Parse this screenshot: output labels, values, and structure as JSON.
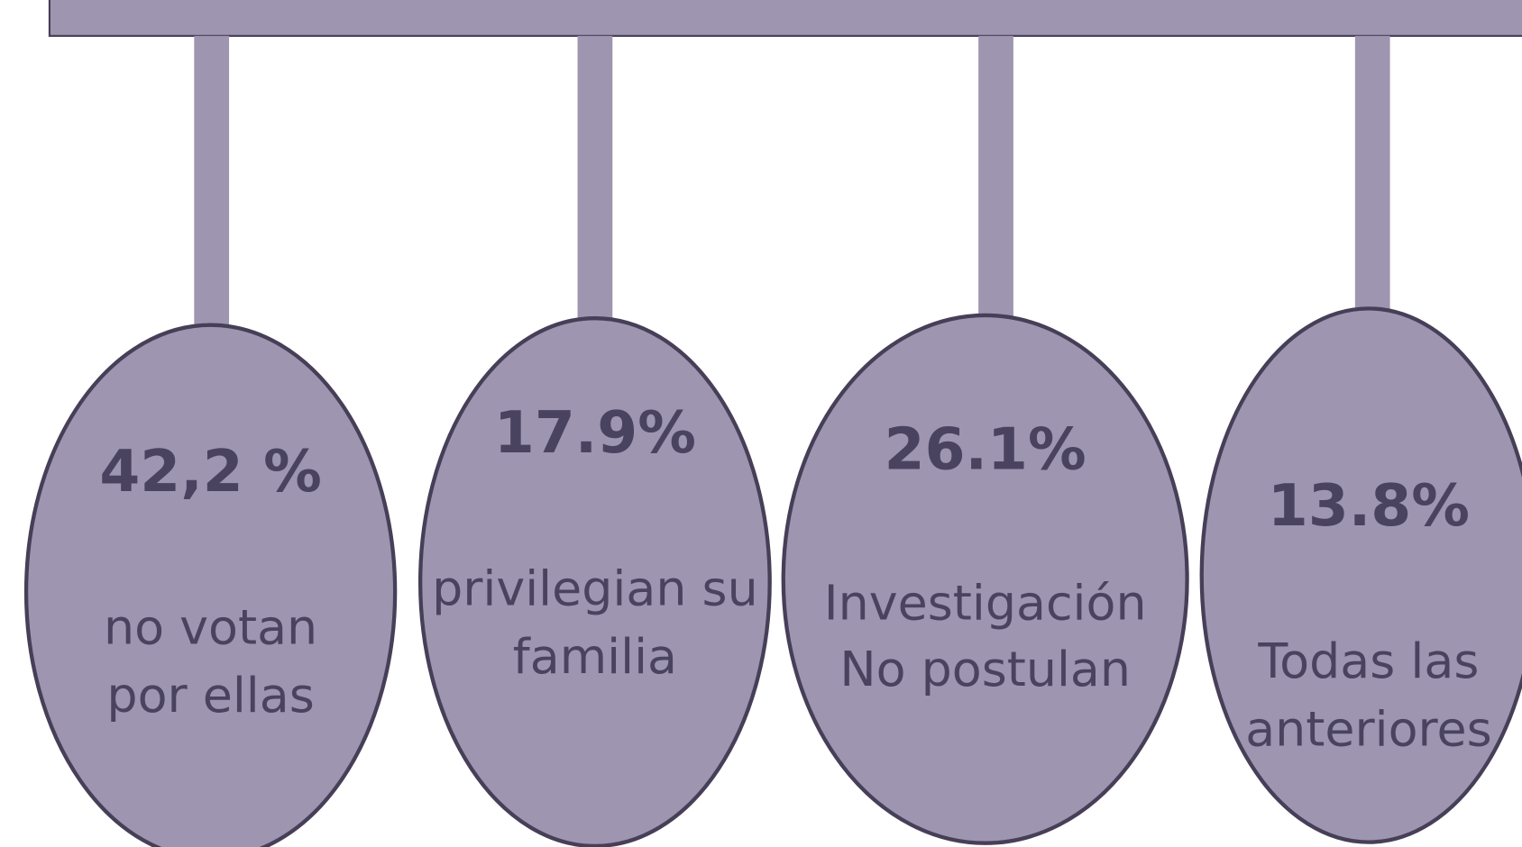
{
  "items": [
    {
      "value": "42,2 %",
      "lines": [
        "no votan",
        "por ellas"
      ]
    },
    {
      "value": "17.9%",
      "lines": [
        "privilegian su",
        "familia"
      ]
    },
    {
      "value": "26.1%",
      "lines": [
        "Investigación",
        "No postulan"
      ]
    },
    {
      "value": "13.8%",
      "lines": [
        "Todas las",
        "anteriores"
      ]
    }
  ]
}
